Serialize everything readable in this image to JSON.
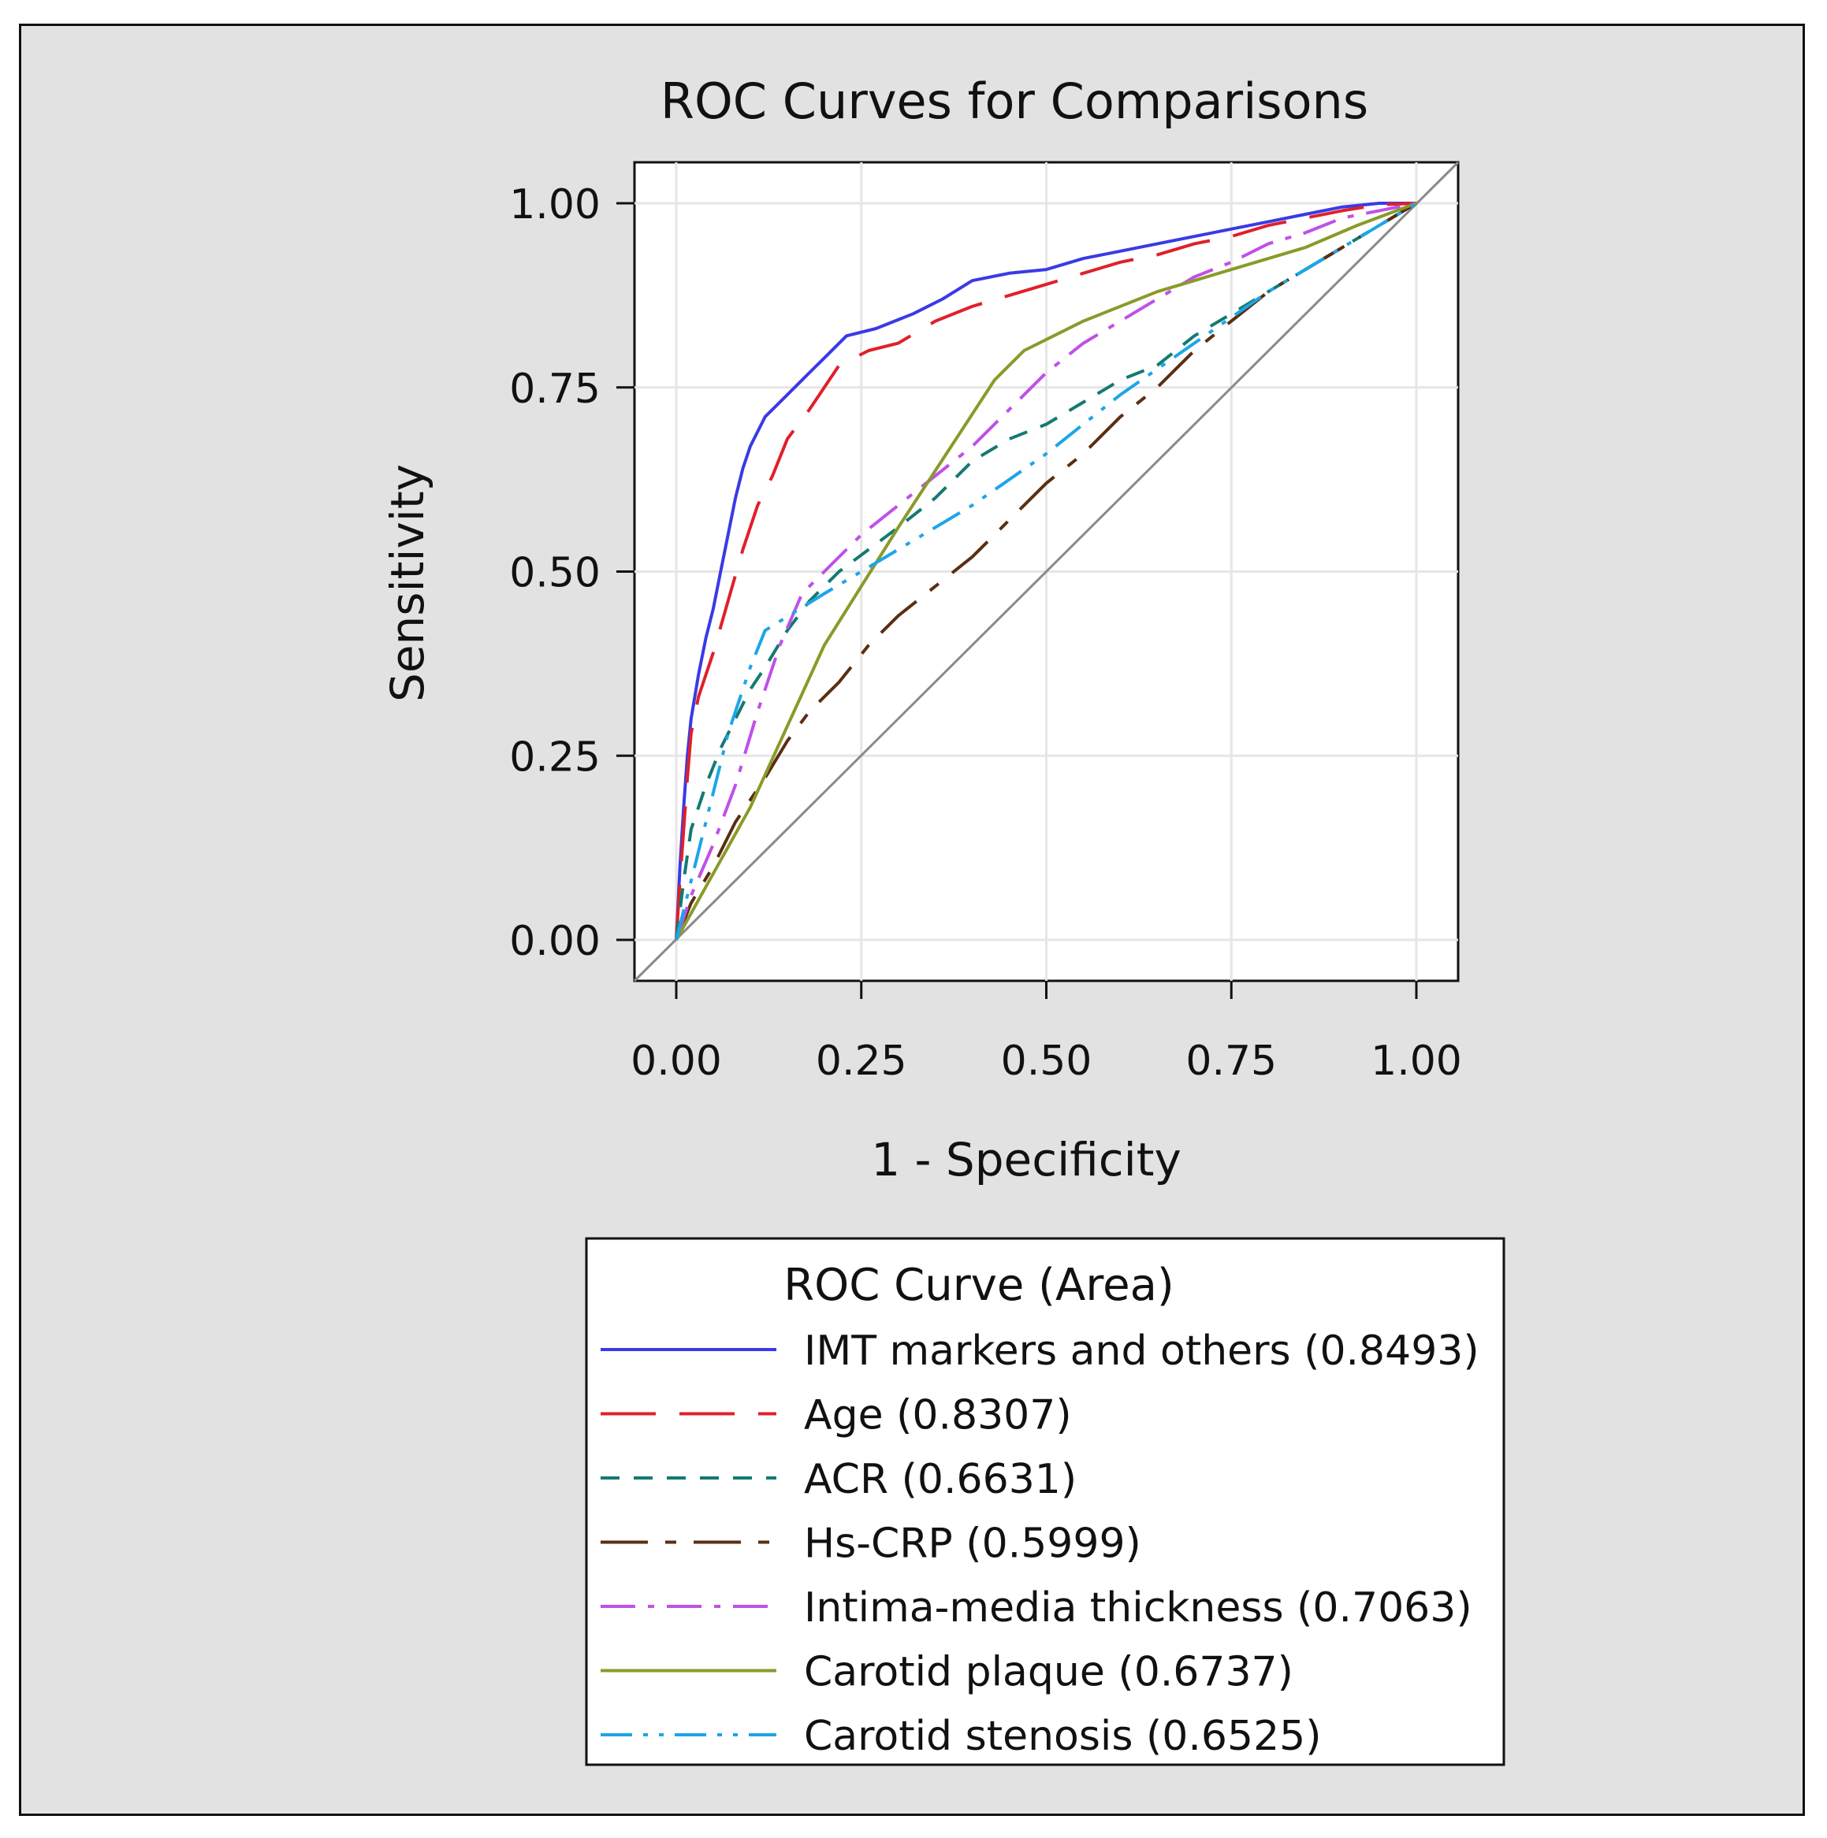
{
  "chart_data": {
    "type": "line",
    "title": "ROC Curves for Comparisons",
    "xlabel": "1 - Specificity",
    "ylabel": "Sensitivity",
    "xlim": [
      0,
      1
    ],
    "ylim": [
      0,
      1
    ],
    "xticks": [
      "0.00",
      "0.25",
      "0.50",
      "0.75",
      "1.00"
    ],
    "yticks": [
      "0.00",
      "0.25",
      "0.50",
      "0.75",
      "1.00"
    ],
    "tick_values": [
      0,
      0.25,
      0.5,
      0.75,
      1
    ],
    "grid": true,
    "legend": {
      "title": "ROC Curve (Area)",
      "position": "bottom"
    },
    "series": [
      {
        "name": "IMT markers and others",
        "area": "(0.8493)",
        "color": "#3a3ae6",
        "dash": "solid",
        "points": [
          [
            0,
            0
          ],
          [
            0.005,
            0.1
          ],
          [
            0.01,
            0.18
          ],
          [
            0.015,
            0.25
          ],
          [
            0.02,
            0.3
          ],
          [
            0.03,
            0.36
          ],
          [
            0.04,
            0.41
          ],
          [
            0.05,
            0.45
          ],
          [
            0.06,
            0.5
          ],
          [
            0.07,
            0.55
          ],
          [
            0.08,
            0.6
          ],
          [
            0.09,
            0.64
          ],
          [
            0.1,
            0.67
          ],
          [
            0.12,
            0.71
          ],
          [
            0.15,
            0.74
          ],
          [
            0.18,
            0.77
          ],
          [
            0.2,
            0.79
          ],
          [
            0.23,
            0.82
          ],
          [
            0.27,
            0.83
          ],
          [
            0.32,
            0.85
          ],
          [
            0.36,
            0.87
          ],
          [
            0.4,
            0.895
          ],
          [
            0.45,
            0.905
          ],
          [
            0.5,
            0.91
          ],
          [
            0.55,
            0.925
          ],
          [
            0.6,
            0.935
          ],
          [
            0.65,
            0.945
          ],
          [
            0.7,
            0.955
          ],
          [
            0.75,
            0.965
          ],
          [
            0.8,
            0.975
          ],
          [
            0.85,
            0.985
          ],
          [
            0.9,
            0.995
          ],
          [
            0.95,
            1.0
          ],
          [
            1,
            1
          ]
        ]
      },
      {
        "name": "Age",
        "area": "(0.8307)",
        "color": "#e0202a",
        "dash": "long",
        "points": [
          [
            0,
            0
          ],
          [
            0.005,
            0.08
          ],
          [
            0.01,
            0.15
          ],
          [
            0.015,
            0.22
          ],
          [
            0.02,
            0.28
          ],
          [
            0.03,
            0.33
          ],
          [
            0.05,
            0.39
          ],
          [
            0.07,
            0.46
          ],
          [
            0.09,
            0.53
          ],
          [
            0.11,
            0.59
          ],
          [
            0.13,
            0.63
          ],
          [
            0.15,
            0.68
          ],
          [
            0.18,
            0.72
          ],
          [
            0.22,
            0.78
          ],
          [
            0.26,
            0.8
          ],
          [
            0.3,
            0.81
          ],
          [
            0.35,
            0.84
          ],
          [
            0.4,
            0.86
          ],
          [
            0.45,
            0.875
          ],
          [
            0.5,
            0.89
          ],
          [
            0.55,
            0.905
          ],
          [
            0.6,
            0.92
          ],
          [
            0.65,
            0.93
          ],
          [
            0.7,
            0.945
          ],
          [
            0.75,
            0.955
          ],
          [
            0.8,
            0.97
          ],
          [
            0.85,
            0.98
          ],
          [
            0.9,
            0.99
          ],
          [
            0.95,
            0.998
          ],
          [
            1,
            1
          ]
        ]
      },
      {
        "name": "ACR",
        "area": "(0.6631)",
        "color": "#137a72",
        "dash": "dash",
        "points": [
          [
            0,
            0
          ],
          [
            0.01,
            0.08
          ],
          [
            0.02,
            0.15
          ],
          [
            0.04,
            0.21
          ],
          [
            0.06,
            0.26
          ],
          [
            0.08,
            0.3
          ],
          [
            0.1,
            0.34
          ],
          [
            0.12,
            0.37
          ],
          [
            0.15,
            0.42
          ],
          [
            0.18,
            0.46
          ],
          [
            0.22,
            0.5
          ],
          [
            0.26,
            0.53
          ],
          [
            0.3,
            0.56
          ],
          [
            0.35,
            0.6
          ],
          [
            0.4,
            0.65
          ],
          [
            0.45,
            0.68
          ],
          [
            0.5,
            0.7
          ],
          [
            0.55,
            0.73
          ],
          [
            0.6,
            0.76
          ],
          [
            0.65,
            0.78
          ],
          [
            0.7,
            0.82
          ],
          [
            0.75,
            0.85
          ],
          [
            0.8,
            0.88
          ],
          [
            0.85,
            0.91
          ],
          [
            0.9,
            0.94
          ],
          [
            0.95,
            0.97
          ],
          [
            1,
            1
          ]
        ]
      },
      {
        "name": "Hs-CRP",
        "area": "(0.5999)",
        "color": "#5b2e12",
        "dash": "longshort",
        "points": [
          [
            0,
            0
          ],
          [
            0.02,
            0.05
          ],
          [
            0.05,
            0.1
          ],
          [
            0.08,
            0.16
          ],
          [
            0.12,
            0.22
          ],
          [
            0.15,
            0.27
          ],
          [
            0.18,
            0.31
          ],
          [
            0.22,
            0.35
          ],
          [
            0.26,
            0.4
          ],
          [
            0.3,
            0.44
          ],
          [
            0.35,
            0.48
          ],
          [
            0.4,
            0.52
          ],
          [
            0.45,
            0.57
          ],
          [
            0.5,
            0.62
          ],
          [
            0.55,
            0.66
          ],
          [
            0.6,
            0.71
          ],
          [
            0.65,
            0.75
          ],
          [
            0.7,
            0.8
          ],
          [
            0.75,
            0.84
          ],
          [
            0.8,
            0.88
          ],
          [
            0.85,
            0.91
          ],
          [
            0.9,
            0.94
          ],
          [
            0.95,
            0.97
          ],
          [
            1,
            1
          ]
        ]
      },
      {
        "name": "Intima-media thickness",
        "area": "(0.7063)",
        "color": "#c050e8",
        "dash": "dashdot",
        "points": [
          [
            0,
            0
          ],
          [
            0.02,
            0.06
          ],
          [
            0.05,
            0.13
          ],
          [
            0.08,
            0.21
          ],
          [
            0.11,
            0.31
          ],
          [
            0.14,
            0.4
          ],
          [
            0.17,
            0.47
          ],
          [
            0.2,
            0.5
          ],
          [
            0.25,
            0.55
          ],
          [
            0.3,
            0.59
          ],
          [
            0.35,
            0.63
          ],
          [
            0.4,
            0.67
          ],
          [
            0.45,
            0.72
          ],
          [
            0.5,
            0.77
          ],
          [
            0.55,
            0.81
          ],
          [
            0.6,
            0.84
          ],
          [
            0.65,
            0.87
          ],
          [
            0.7,
            0.9
          ],
          [
            0.75,
            0.92
          ],
          [
            0.8,
            0.945
          ],
          [
            0.85,
            0.96
          ],
          [
            0.9,
            0.98
          ],
          [
            0.95,
            0.99
          ],
          [
            1,
            1
          ]
        ]
      },
      {
        "name": "Carotid plaque",
        "area": "(0.6737)",
        "color": "#8a9a2a",
        "dash": "solid",
        "points": [
          [
            0,
            0
          ],
          [
            0.1,
            0.18
          ],
          [
            0.2,
            0.4
          ],
          [
            0.3,
            0.56
          ],
          [
            0.43,
            0.76
          ],
          [
            0.47,
            0.8
          ],
          [
            0.55,
            0.84
          ],
          [
            0.65,
            0.88
          ],
          [
            0.75,
            0.91
          ],
          [
            0.85,
            0.94
          ],
          [
            0.92,
            0.97
          ],
          [
            1,
            1
          ]
        ]
      },
      {
        "name": "Carotid stenosis",
        "area": "(0.6525)",
        "color": "#1ca6e8",
        "dash": "dashdotdot",
        "points": [
          [
            0,
            0
          ],
          [
            0.02,
            0.08
          ],
          [
            0.04,
            0.16
          ],
          [
            0.07,
            0.28
          ],
          [
            0.1,
            0.37
          ],
          [
            0.12,
            0.42
          ],
          [
            0.2,
            0.47
          ],
          [
            0.3,
            0.53
          ],
          [
            0.4,
            0.59
          ],
          [
            0.5,
            0.66
          ],
          [
            0.6,
            0.74
          ],
          [
            0.7,
            0.81
          ],
          [
            0.8,
            0.88
          ],
          [
            0.9,
            0.94
          ],
          [
            1,
            1
          ]
        ]
      }
    ]
  }
}
